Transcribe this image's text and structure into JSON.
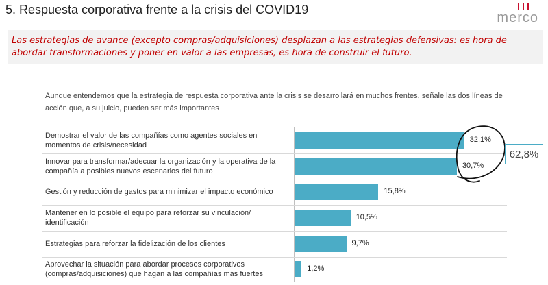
{
  "header": {
    "title": "5. Respuesta corporativa frente a la crisis del COVID19",
    "logo_text": "merco"
  },
  "banner": {
    "text": "Las estrategias de avance (excepto compras/adquisiciones) desplazan a las estrategias defensivas: es hora de abordar transformaciones y poner en valor a las empresas, es hora de construir el futuro."
  },
  "question": "Aunque entendemos que la estrategia de respuesta corporativa ante la crisis se desarrollará en muchos frentes, señale las dos líneas de acción que, a su juicio, pueden ser más importantes",
  "callout": "62,8%",
  "colors": {
    "bar": "#4bacc6",
    "banner_text": "#c00000",
    "logo_accent": "#c8102e"
  },
  "chart_data": {
    "type": "bar",
    "orientation": "horizontal",
    "categories": [
      "Demostrar el valor de las compañías como agentes sociales en momentos de crisis/necesidad",
      "Innovar para transformar/adecuar la organización y la operativa de la compañía a posibles nuevos escenarios del futuro",
      "Gestión y reducción de gastos  para minimizar el impacto económico",
      "Mantener en lo posible el equipo para reforzar su vinculación/ identificación",
      "Estrategias para reforzar la fidelización de los clientes",
      "Aprovechar la situación para abordar procesos corporativos (compras/adquisiciones) que hagan a las compañías más fuertes"
    ],
    "values": [
      32.1,
      30.7,
      15.8,
      10.5,
      9.7,
      1.2
    ],
    "value_labels": [
      "32,1%",
      "30,7%",
      "15,8%",
      "10,5%",
      "9,7%",
      "1,2%"
    ],
    "xlim": [
      0,
      33.7
    ],
    "grid": false,
    "legend": "none"
  }
}
